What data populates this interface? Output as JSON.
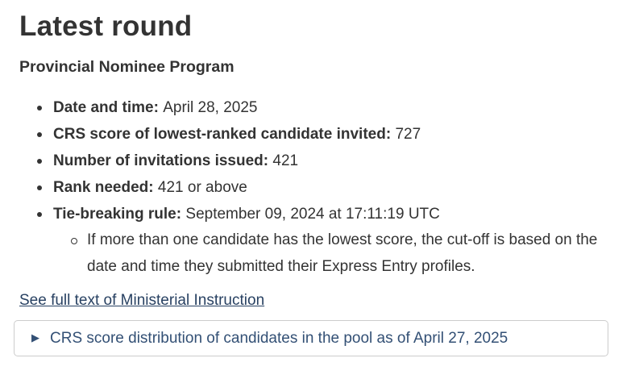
{
  "page": {
    "heading": "Latest round",
    "subheading": "Provincial Nominee Program"
  },
  "round": {
    "items": [
      {
        "label": "Date and time:",
        "value": "April 28, 2025"
      },
      {
        "label": "CRS score of lowest-ranked candidate invited:",
        "value": "727"
      },
      {
        "label": "Number of invitations issued:",
        "value": "421"
      },
      {
        "label": "Rank needed:",
        "value": "421 or above"
      },
      {
        "label": "Tie-breaking rule:",
        "value": "September 09, 2024 at 17:11:19 UTC"
      }
    ],
    "tie_break_note": "If more than one candidate has the lowest score, the cut-off is based on the date and time they submitted their Express Entry profiles."
  },
  "links": {
    "ministerial_instruction": "See full text of Ministerial Instruction"
  },
  "details_panel": {
    "summary": "CRS score distribution of candidates in the pool as of April 27, 2025",
    "expand_icon": "▶",
    "state": "collapsed"
  },
  "colors": {
    "body_text": "#333333",
    "link": "#284162",
    "details_text": "#335075",
    "details_border": "#cccccc",
    "background": "#ffffff"
  }
}
